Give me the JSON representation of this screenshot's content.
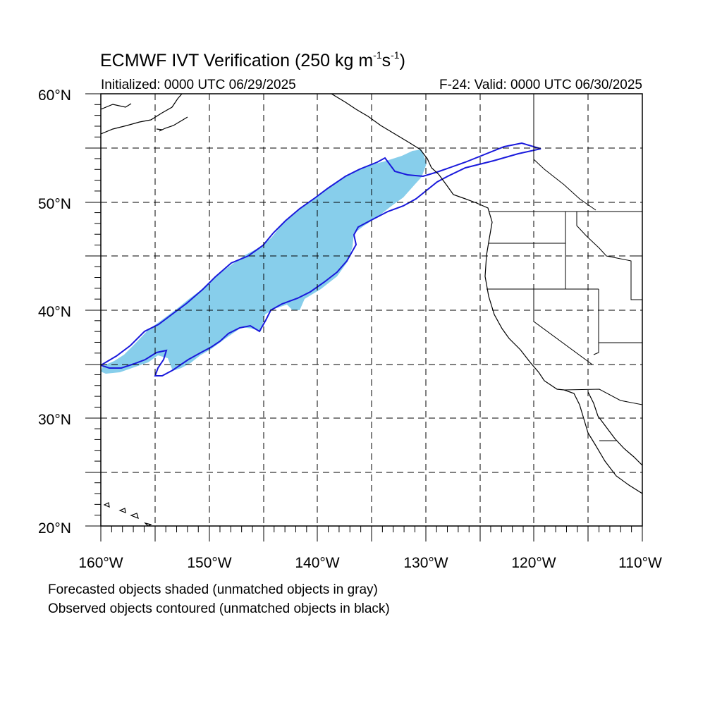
{
  "title": {
    "main": "ECMWF IVT Verification (250 kg m",
    "sup1": "-1",
    "mid": "s",
    "sup2": "-1",
    "end": ")"
  },
  "initialized": "Initialized: 0000 UTC 06/29/2025",
  "valid": "F-24: Valid: 0000 UTC 06/30/2025",
  "map": {
    "lat_range": [
      20,
      60
    ],
    "lon_range": [
      -160,
      -110
    ],
    "lat_labels": [
      "60°N",
      "50°N",
      "40°N",
      "30°N",
      "20°N"
    ],
    "lon_labels": [
      "160°W",
      "150°W",
      "140°W",
      "130°W",
      "120°W",
      "110°W"
    ],
    "grid_spacing_deg": 5,
    "gridlines": "dashed",
    "forecast_fill_color": "#87ceeb",
    "observed_contour_color": "#1a1adc"
  },
  "notes": {
    "forecast": "Forecasted objects shaded (unmatched objects in gray)",
    "observed": "Observed objects contoured (unmatched objects in black)"
  }
}
